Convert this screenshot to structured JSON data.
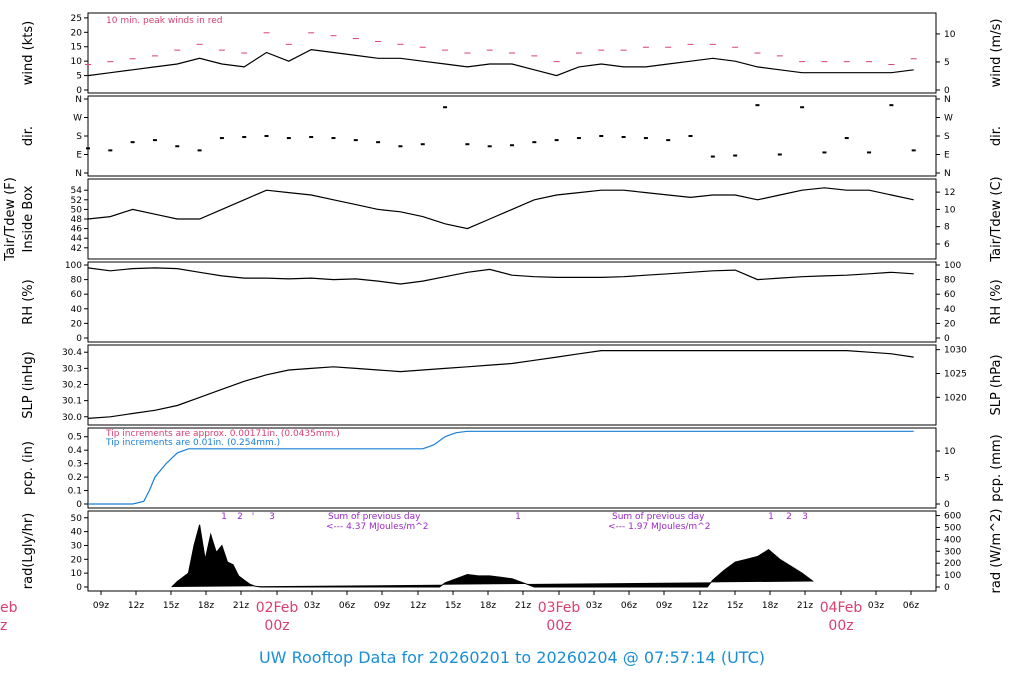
{
  "title": "UW Rooftop Data for 20260201  to  20260204 @ 07:57:14  (UTC)",
  "colors": {
    "title": "#1a8fd6",
    "peak": "#d94070",
    "tip_small": "#d94070",
    "tip_large": "#1a7fd6",
    "rad_note": "#9b28c8",
    "date": "#d94070"
  },
  "x_axis": {
    "hour_labels": [
      "09z",
      "12z",
      "15z",
      "18z",
      "21z",
      "02Feb",
      "03z",
      "06z",
      "09z",
      "12z",
      "15z",
      "18z",
      "21z",
      "03Feb",
      "03z",
      "06z",
      "09z",
      "12z",
      "15z",
      "18z",
      "21z",
      "04Feb",
      "03z",
      "06z"
    ],
    "sub_labels": [
      "00z",
      "00z",
      "00z"
    ],
    "left_cut_label_1": "eb",
    "left_cut_label_2": "z"
  },
  "chart_data": [
    {
      "type": "line",
      "name": "wind",
      "ylabel_left": "wind (kts)",
      "ylabel_right": "wind (m/s)",
      "yticks_left": [
        "0",
        "5",
        "10",
        "15",
        "20",
        "25"
      ],
      "yticks_right": [
        "0",
        "5",
        "10"
      ],
      "ylim": [
        0,
        26
      ],
      "annotation": "10 min. peak winds in red",
      "series": [
        {
          "name": "wind",
          "x": [
            0,
            2,
            4,
            6,
            8,
            10,
            12,
            14,
            16,
            18,
            20,
            22,
            24,
            26,
            28,
            30,
            32,
            34,
            36,
            38,
            40,
            42,
            44,
            46,
            48,
            50,
            52,
            54,
            56,
            58,
            60,
            62,
            64,
            66,
            68,
            70,
            72,
            74
          ],
          "values": [
            5,
            6,
            7,
            8,
            9,
            11,
            9,
            8,
            13,
            10,
            14,
            13,
            12,
            11,
            11,
            10,
            9,
            8,
            9,
            9,
            7,
            5,
            8,
            9,
            8,
            8,
            9,
            10,
            11,
            10,
            8,
            7,
            6,
            6,
            6,
            6,
            6,
            7
          ]
        },
        {
          "name": "10 min. peak winds",
          "x": [
            0,
            2,
            4,
            6,
            8,
            10,
            12,
            14,
            16,
            18,
            20,
            22,
            24,
            26,
            28,
            30,
            32,
            34,
            36,
            38,
            40,
            42,
            44,
            46,
            48,
            50,
            52,
            54,
            56,
            58,
            60,
            62,
            64,
            66,
            68,
            70,
            72,
            74
          ],
          "values": [
            9,
            10,
            11,
            12,
            14,
            16,
            14,
            13,
            20,
            16,
            20,
            19,
            18,
            17,
            16,
            15,
            14,
            13,
            14,
            13,
            12,
            10,
            13,
            14,
            14,
            15,
            15,
            16,
            16,
            15,
            13,
            12,
            10,
            10,
            10,
            10,
            9,
            11
          ]
        }
      ]
    },
    {
      "type": "scatter",
      "name": "direction",
      "ylabel_left": "dir.",
      "ylabel_right": "dir.",
      "yticks": [
        "N",
        "E",
        "S",
        "W",
        "N"
      ],
      "ylim": [
        0,
        360
      ],
      "series": [
        {
          "name": "dir",
          "x": [
            0,
            2,
            4,
            6,
            8,
            10,
            12,
            14,
            16,
            18,
            20,
            22,
            24,
            26,
            28,
            30,
            32,
            34,
            36,
            38,
            40,
            42,
            44,
            46,
            48,
            50,
            52,
            54,
            56,
            58,
            60,
            62,
            64,
            66,
            68,
            70,
            72,
            74
          ],
          "values": [
            120,
            110,
            150,
            160,
            130,
            110,
            170,
            175,
            180,
            170,
            175,
            170,
            160,
            150,
            130,
            140,
            320,
            140,
            130,
            135,
            150,
            160,
            170,
            180,
            175,
            170,
            160,
            180,
            80,
            85,
            330,
            90,
            320,
            100,
            170,
            100,
            330,
            110
          ]
        }
      ]
    },
    {
      "type": "line",
      "name": "temperature",
      "ylabel_left": "Tair/Tdew (F)",
      "ylabel_left2": "Inside Box",
      "ylabel_right": "Tair/Tdew (C)",
      "yticks_left": [
        "42",
        "44",
        "46",
        "48",
        "50",
        "52",
        "54"
      ],
      "yticks_right": [
        "6",
        "8",
        "10",
        "12"
      ],
      "ylim": [
        40.5,
        55.5
      ],
      "series": [
        {
          "name": "Tair",
          "x": [
            0,
            2,
            4,
            6,
            8,
            10,
            12,
            14,
            16,
            18,
            20,
            22,
            24,
            26,
            28,
            30,
            32,
            34,
            36,
            38,
            40,
            42,
            44,
            46,
            48,
            50,
            52,
            54,
            56,
            58,
            60,
            62,
            64,
            66,
            68,
            70,
            72,
            74
          ],
          "values": [
            48,
            48.5,
            50,
            49,
            48,
            48,
            50,
            52,
            54,
            53.5,
            53,
            52,
            51,
            50,
            49.5,
            48.5,
            47,
            46,
            48,
            50,
            52,
            53,
            53.5,
            54,
            54,
            53.5,
            53,
            52.5,
            53,
            53,
            52,
            53,
            54,
            54.5,
            54,
            54,
            53,
            52
          ]
        }
      ]
    },
    {
      "type": "line",
      "name": "humidity",
      "ylabel_left": "RH (%)",
      "ylabel_right": "RH (%)",
      "yticks": [
        "0",
        "20",
        "40",
        "60",
        "80",
        "100"
      ],
      "ylim": [
        0,
        100
      ],
      "series": [
        {
          "name": "RH",
          "x": [
            0,
            2,
            4,
            6,
            8,
            10,
            12,
            14,
            16,
            18,
            20,
            22,
            24,
            26,
            28,
            30,
            32,
            34,
            36,
            38,
            40,
            42,
            44,
            46,
            48,
            50,
            52,
            54,
            56,
            58,
            60,
            62,
            64,
            66,
            68,
            70,
            72,
            74
          ],
          "values": [
            96,
            92,
            95,
            96,
            95,
            90,
            85,
            82,
            82,
            81,
            82,
            80,
            81,
            78,
            74,
            78,
            84,
            90,
            94,
            86,
            84,
            83,
            83,
            83,
            84,
            86,
            88,
            90,
            92,
            93,
            80,
            82,
            84,
            85,
            86,
            88,
            90,
            88
          ]
        }
      ]
    },
    {
      "type": "line",
      "name": "pressure",
      "ylabel_left": "SLP (inHg)",
      "ylabel_right": "SLP (hPa)",
      "yticks_left": [
        "30.0",
        "30.1",
        "30.2",
        "30.3",
        "30.4"
      ],
      "yticks_right": [
        "1020",
        "1025",
        "1030"
      ],
      "ylim": [
        29.98,
        30.42
      ],
      "series": [
        {
          "name": "SLP",
          "x": [
            0,
            2,
            4,
            6,
            8,
            10,
            12,
            14,
            16,
            18,
            20,
            22,
            24,
            26,
            28,
            30,
            32,
            34,
            36,
            38,
            40,
            42,
            44,
            46,
            48,
            50,
            52,
            54,
            56,
            58,
            60,
            62,
            64,
            66,
            68,
            70,
            72,
            74
          ],
          "values": [
            29.99,
            30.0,
            30.02,
            30.04,
            30.07,
            30.12,
            30.17,
            30.22,
            30.26,
            30.29,
            30.3,
            30.31,
            30.3,
            30.29,
            30.28,
            30.29,
            30.3,
            30.31,
            30.32,
            30.33,
            30.35,
            30.37,
            30.39,
            30.41,
            30.41,
            30.41,
            30.41,
            30.41,
            30.41,
            30.41,
            30.41,
            30.41,
            30.41,
            30.41,
            30.41,
            30.4,
            30.39,
            30.37
          ]
        }
      ]
    },
    {
      "type": "line",
      "name": "precipitation",
      "ylabel_left": "pcp. (in)",
      "ylabel_right": "pcp. (mm)",
      "yticks_left": [
        "0",
        "0.1",
        "0.2",
        "0.3",
        "0.4",
        "0.5"
      ],
      "yticks_right": [
        "0",
        "5",
        "10"
      ],
      "ylim": [
        0,
        0.55
      ],
      "annotation_1": "Tip increments are approx. 0.00171in. (0.0435mm.)",
      "annotation_2": "Tip increments are 0.01in. (0.254mm.)",
      "series": [
        {
          "name": "pcp",
          "x": [
            0,
            2,
            4,
            5,
            5.5,
            6,
            7,
            8,
            9,
            10,
            12,
            14,
            16,
            18,
            20,
            22,
            24,
            26,
            28,
            30,
            31,
            32,
            33,
            34,
            35,
            36,
            38,
            40,
            42,
            44,
            46,
            48,
            50,
            52,
            54,
            56,
            58,
            60,
            62,
            64,
            66,
            68,
            70,
            72,
            74
          ],
          "values": [
            0,
            0,
            0,
            0.02,
            0.1,
            0.2,
            0.3,
            0.38,
            0.41,
            0.41,
            0.41,
            0.41,
            0.41,
            0.41,
            0.41,
            0.41,
            0.41,
            0.41,
            0.41,
            0.41,
            0.44,
            0.5,
            0.53,
            0.54,
            0.54,
            0.54,
            0.54,
            0.54,
            0.54,
            0.54,
            0.54,
            0.54,
            0.54,
            0.54,
            0.54,
            0.54,
            0.54,
            0.54,
            0.54,
            0.54,
            0.54,
            0.54,
            0.54,
            0.54,
            0.54
          ]
        }
      ]
    },
    {
      "type": "area",
      "name": "radiation",
      "ylabel_left": "rad(Lgly/hr)",
      "ylabel_right": "rad (W/m^2)",
      "yticks_left": [
        "0",
        "10",
        "20",
        "30",
        "40",
        "50"
      ],
      "yticks_right": [
        "0",
        "100",
        "200",
        "300",
        "400",
        "500",
        "600"
      ],
      "ylim": [
        0,
        52
      ],
      "note_day1_a": "Sum of previous day",
      "note_day1_b": "<--- 4.37 MJoules/m^2",
      "note_day2_a": "Sum of previous day",
      "note_day2_b": "<--- 1.97 MJoules/m^2",
      "marker_labels": [
        "1",
        "2",
        "3",
        "4",
        "1",
        "1",
        "2",
        "3"
      ],
      "series": [
        {
          "name": "rad",
          "x": [
            7.5,
            8,
            9,
            9.5,
            10,
            10.5,
            11,
            11.5,
            12,
            12.5,
            13,
            13.5,
            14,
            14.5,
            15,
            15.5,
            16,
            17,
            31.5,
            32,
            33,
            34,
            35,
            36,
            37,
            38,
            39,
            40,
            55.5,
            56,
            57,
            58,
            59,
            60,
            61,
            62,
            63,
            64,
            65
          ],
          "values": [
            0,
            4,
            10,
            30,
            45,
            20,
            38,
            25,
            30,
            18,
            16,
            8,
            5,
            2,
            0.5,
            0,
            0,
            0,
            0,
            3,
            6,
            9,
            8,
            8,
            7,
            6,
            3,
            0,
            0,
            5,
            12,
            18,
            20,
            22,
            27,
            20,
            15,
            10,
            4
          ]
        }
      ]
    }
  ]
}
